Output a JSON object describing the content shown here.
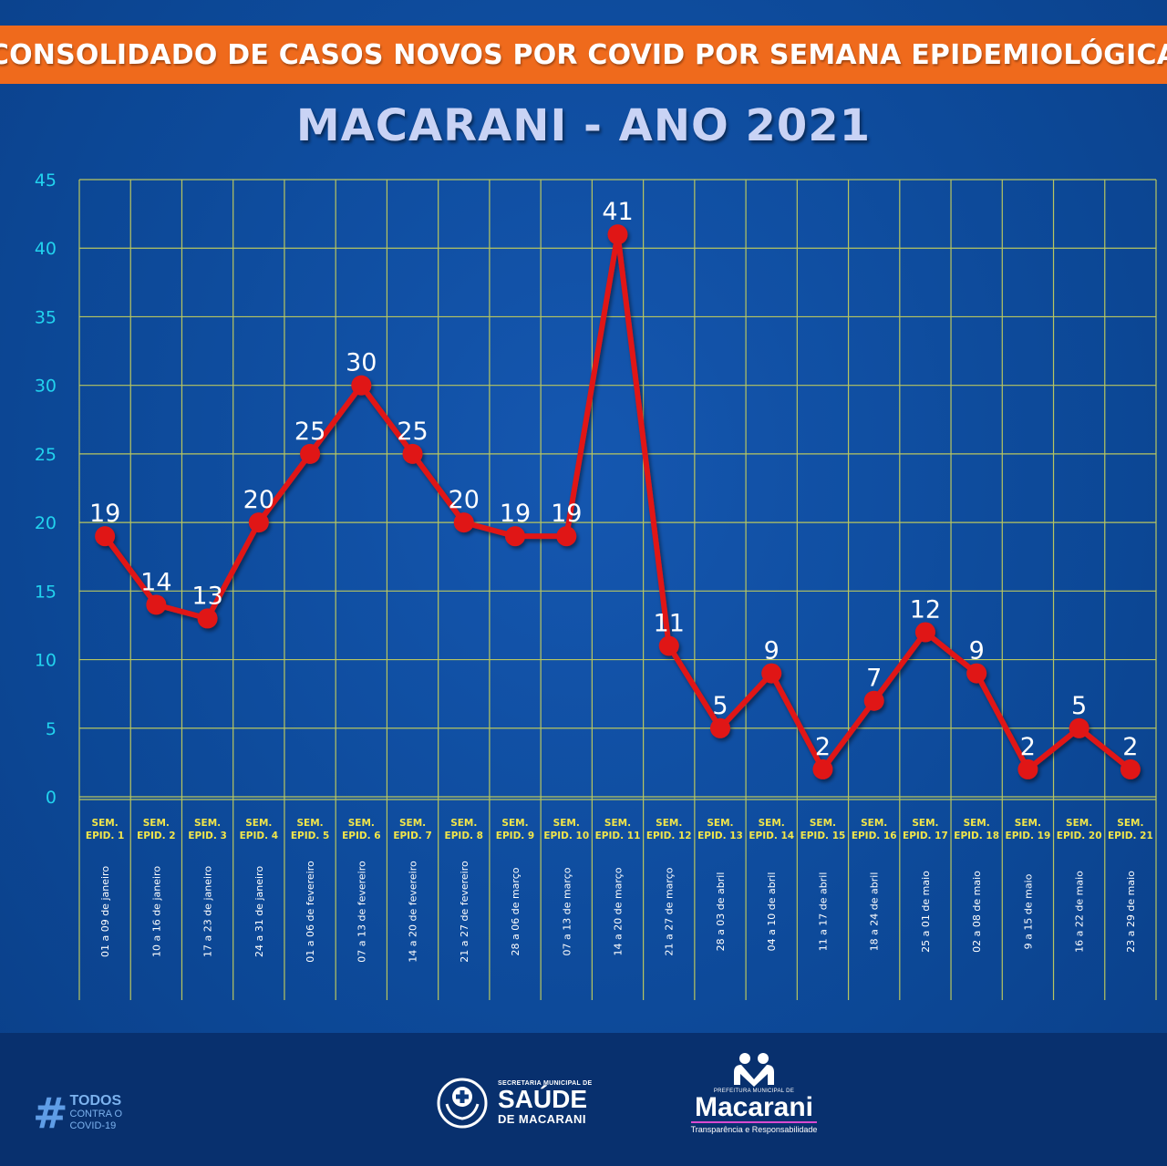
{
  "header": {
    "banner_title": "CONSOLIDADO DE CASOS NOVOS POR COVID POR SEMANA EPIDEMIOLÓGICA",
    "subtitle": "MACARANI - ANO 2021"
  },
  "colors": {
    "background": "#0d4a9a",
    "banner": "#ef6a1c",
    "grid": "#b8c660",
    "line": "#e01515",
    "tick_text": "#22d3ee",
    "category_text": "#f2e64a",
    "date_text": "#ffffff",
    "footer": "#08306e"
  },
  "chart_data": {
    "type": "line",
    "title": "CONSOLIDADO DE CASOS NOVOS POR COVID POR SEMANA EPIDEMIOLÓGICA",
    "subtitle": "MACARANI - ANO 2021",
    "categories": [
      "SEM. EPID. 1",
      "SEM. EPID. 2",
      "SEM. EPID. 3",
      "SEM. EPID. 4",
      "SEM. EPID. 5",
      "SEM. EPID. 6",
      "SEM. EPID. 7",
      "SEM. EPID. 8",
      "SEM. EPID. 9",
      "SEM. EPID. 10",
      "SEM. EPID. 11",
      "SEM. EPID. 12",
      "SEM. EPID. 13",
      "SEM. EPID. 14",
      "SEM. EPID. 15",
      "SEM. EPID. 16",
      "SEM. EPID. 17",
      "SEM. EPID. 18",
      "SEM. EPID. 19",
      "SEM. EPID. 20",
      "SEM. EPID. 21"
    ],
    "category_lines": [
      [
        "SEM.",
        "EPID.  1"
      ],
      [
        "SEM.",
        "EPID.  2"
      ],
      [
        "SEM.",
        "EPID.  3"
      ],
      [
        "SEM.",
        "EPID.  4"
      ],
      [
        "SEM.",
        "EPID.  5"
      ],
      [
        "SEM.",
        "EPID.  6"
      ],
      [
        "SEM.",
        "EPID.  7"
      ],
      [
        "SEM.",
        "EPID.  8"
      ],
      [
        "SEM.",
        "EPID.  9"
      ],
      [
        "SEM.",
        "EPID. 10"
      ],
      [
        "SEM.",
        "EPID. 11"
      ],
      [
        "SEM.",
        "EPID. 12"
      ],
      [
        "SEM.",
        "EPID. 13"
      ],
      [
        "SEM.",
        "EPID. 14"
      ],
      [
        "SEM.",
        "EPID. 15"
      ],
      [
        "SEM.",
        "EPID. 16"
      ],
      [
        "SEM.",
        "EPID. 17"
      ],
      [
        "SEM.",
        "EPID. 18"
      ],
      [
        "SEM.",
        "EPID. 19"
      ],
      [
        "SEM.",
        "EPID. 20"
      ],
      [
        "SEM.",
        "EPID. 21"
      ]
    ],
    "date_ranges": [
      "01 a 09 de janeiro",
      "10 a 16 de janeiro",
      "17 a 23 de janeiro",
      "24 a 31 de janeiro",
      "01 a 06 de fevereiro",
      "07 a 13 de fevereiro",
      "14 a 20 de fevereiro",
      "21 a 27 de fevereiro",
      "28 a 06 de março",
      "07 a 13 de março",
      "14 a 20 de março",
      "21 a 27 de março",
      "28 a 03 de abril",
      "04 a 10 de abril",
      "11 a 17 de abril",
      "18 a 24 de abril",
      "25 a 01 de maio",
      "02 a 08 de maio",
      "9 a 15 de maio",
      "16 a 22 de maio",
      "23 a 29 de maio"
    ],
    "values": [
      19,
      14,
      13,
      20,
      25,
      30,
      25,
      20,
      19,
      19,
      41,
      11,
      5,
      9,
      2,
      7,
      12,
      9,
      2,
      5,
      2
    ],
    "ylim": [
      0,
      45
    ],
    "yticks": [
      0,
      5,
      10,
      15,
      20,
      25,
      30,
      35,
      40,
      45
    ],
    "grid": true,
    "legend": "none"
  },
  "footer": {
    "hashtag_symbol": "#",
    "hashtag_line1": "TODOS",
    "hashtag_line2": "CONTRA O",
    "hashtag_line3": "COVID-19",
    "saude_small": "SECRETARIA MUNICIPAL DE",
    "saude_big": "SAÚDE",
    "saude_sub": "DE MACARANI",
    "mac_small": "PREFEITURA MUNICIPAL DE",
    "mac_name": "Macarani",
    "mac_tag": "Transparência e Responsabilidade"
  }
}
